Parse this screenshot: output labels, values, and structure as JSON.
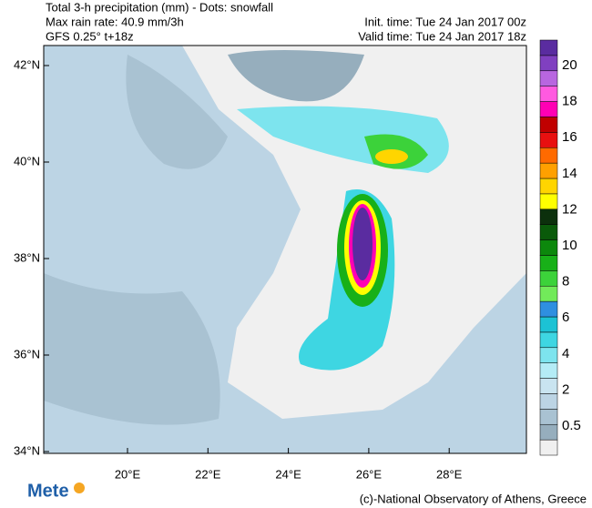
{
  "header": {
    "title": "Total 3-h precipitation (mm) - Dots: snowfall",
    "max_rate": "Max rain rate: 40.9 mm/3h",
    "model": "GFS 0.25° t+18z",
    "init_time": "Init. time: Tue 24 Jan 2017 00z",
    "valid_time": "Valid time: Tue 24 Jan 2017 18z"
  },
  "map": {
    "lat_labels": [
      "42°N",
      "40°N",
      "38°N",
      "36°N",
      "34°N"
    ],
    "lon_labels": [
      "20°E",
      "22°E",
      "24°E",
      "26°E",
      "28°E"
    ]
  },
  "colorbar": {
    "colors": [
      "#f0f0f0",
      "#96aebd",
      "#a9c2d2",
      "#bcd4e4",
      "#c9e4f0",
      "#b4ecf6",
      "#7de4ee",
      "#3ed6e2",
      "#1cc2d4",
      "#2f8fe0",
      "#72ea5a",
      "#3cd23a",
      "#18b018",
      "#0c880c",
      "#0a5a0a",
      "#0c300c",
      "#ffff00",
      "#ffd500",
      "#ffa000",
      "#ff6a00",
      "#e81010",
      "#c00000",
      "#ff00b4",
      "#ff5ae0",
      "#b866e0",
      "#8040c0",
      "#5a2ca0"
    ],
    "labels": [
      "0.5",
      "2",
      "4",
      "6",
      "8",
      "10",
      "12",
      "14",
      "16",
      "18",
      "20"
    ]
  },
  "footer": {
    "logo": "Mete",
    "credit": "(c)-National Observatory of Athens, Greece"
  }
}
